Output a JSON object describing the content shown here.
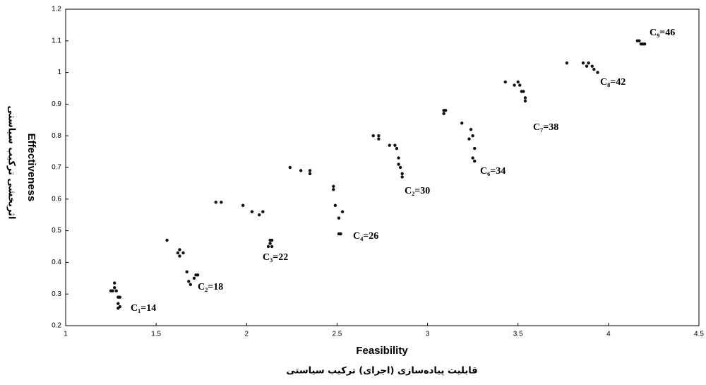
{
  "chart_data": {
    "type": "scatter",
    "x_label": "Feasibility",
    "x_label_fa": "قابلیت پیاده‌سازی (اجرای) ترکیب سیاستی",
    "y_label": "Effectiveness",
    "y_label_fa": "اثربخشی ترکیب سیاستی",
    "xlim": [
      1,
      4.5
    ],
    "xticks": [
      1,
      1.5,
      2,
      2.5,
      3,
      3.5,
      4,
      4.5
    ],
    "ylim": [
      0.2,
      1.2
    ],
    "yticks": [
      0.2,
      0.3,
      0.4,
      0.5,
      0.6,
      0.7,
      0.8,
      0.9,
      1,
      1.1,
      1.2
    ],
    "series": [
      {
        "color": "#111111",
        "x": [
          1.25,
          1.26,
          1.27,
          1.27,
          1.28,
          1.29,
          1.3,
          1.29,
          1.29,
          1.3,
          1.56,
          1.62,
          1.63,
          1.65,
          1.63,
          1.67,
          1.69,
          1.71,
          1.72,
          1.73,
          1.68,
          1.83,
          1.86,
          1.98,
          2.03,
          2.07,
          2.09,
          2.13,
          2.14,
          2.12,
          2.14,
          2.13,
          2.24,
          2.3,
          2.35,
          2.35,
          2.48,
          2.48,
          2.49,
          2.53,
          2.51,
          2.51,
          2.52,
          2.7,
          2.73,
          2.73,
          2.79,
          2.82,
          2.83,
          2.84,
          2.84,
          2.85,
          2.86,
          2.86,
          3.09,
          3.1,
          3.09,
          3.19,
          3.24,
          3.25,
          3.23,
          3.26,
          3.25,
          3.26,
          3.43,
          3.48,
          3.5,
          3.51,
          3.52,
          3.53,
          3.54,
          3.54,
          3.77,
          3.86,
          3.88,
          3.89,
          3.91,
          3.92,
          3.94,
          4.16,
          4.17,
          4.18,
          4.19,
          4.2
        ],
        "y": [
          0.31,
          0.31,
          0.335,
          0.32,
          0.31,
          0.29,
          0.29,
          0.27,
          0.255,
          0.26,
          0.47,
          0.43,
          0.44,
          0.43,
          0.42,
          0.37,
          0.33,
          0.35,
          0.36,
          0.36,
          0.34,
          0.59,
          0.59,
          0.58,
          0.56,
          0.55,
          0.56,
          0.47,
          0.47,
          0.45,
          0.45,
          0.46,
          0.7,
          0.69,
          0.69,
          0.68,
          0.64,
          0.63,
          0.58,
          0.56,
          0.54,
          0.49,
          0.49,
          0.8,
          0.8,
          0.79,
          0.77,
          0.77,
          0.76,
          0.73,
          0.71,
          0.7,
          0.68,
          0.67,
          0.88,
          0.88,
          0.87,
          0.84,
          0.82,
          0.8,
          0.79,
          0.76,
          0.73,
          0.72,
          0.97,
          0.96,
          0.97,
          0.96,
          0.94,
          0.94,
          0.92,
          0.91,
          1.03,
          1.03,
          1.02,
          1.03,
          1.02,
          1.01,
          1.0,
          1.1,
          1.1,
          1.09,
          1.09,
          1.09
        ]
      }
    ],
    "annotations": [
      "C₁=14",
      "C₂=18",
      "C₃=22",
      "C₄=26",
      "C₂=30",
      "C₆=34",
      "C₇=38",
      "C₈=42",
      "C₉=46"
    ]
  }
}
